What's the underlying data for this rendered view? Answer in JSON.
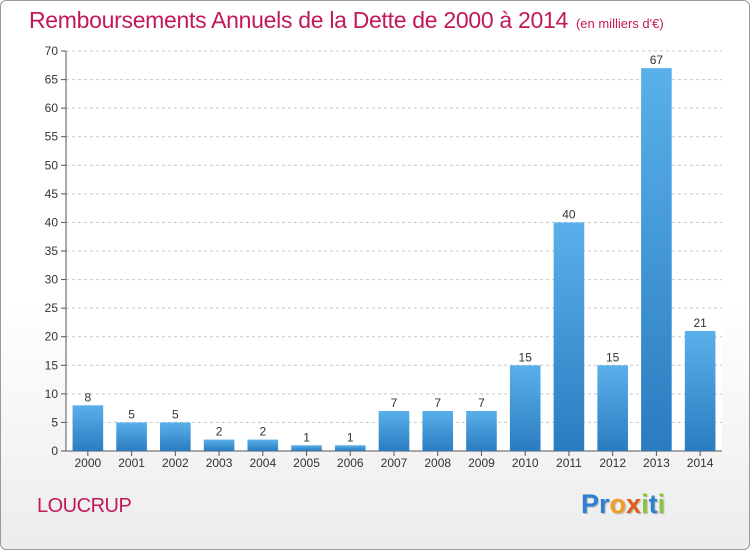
{
  "header": {
    "title": "Remboursements Annuels de la Dette de 2000 à 2014",
    "subtitle": "(en milliers d'€)"
  },
  "footer": {
    "commune": "LOUCRUP",
    "logo_parts": [
      "Pr",
      "o",
      "x",
      "i",
      "t",
      "i"
    ]
  },
  "colors": {
    "bar_top": "#5ab0ea",
    "bar_bottom": "#2a7cc0",
    "title": "#c2185b",
    "grid": "#c8c8c8"
  },
  "chart_data": {
    "type": "bar",
    "title": "Remboursements Annuels de la Dette de 2000 à 2014",
    "subtitle": "(en milliers d'€)",
    "categories": [
      "2000",
      "2001",
      "2002",
      "2003",
      "2004",
      "2005",
      "2006",
      "2007",
      "2008",
      "2009",
      "2010",
      "2011",
      "2012",
      "2013",
      "2014"
    ],
    "values": [
      8,
      5,
      5,
      2,
      2,
      1,
      1,
      7,
      7,
      7,
      15,
      40,
      15,
      67,
      21
    ],
    "ylim": [
      0,
      70
    ],
    "yticks": [
      0,
      5,
      10,
      15,
      20,
      25,
      30,
      35,
      40,
      45,
      50,
      55,
      60,
      65,
      70
    ],
    "grid": true,
    "data_labels": true
  }
}
